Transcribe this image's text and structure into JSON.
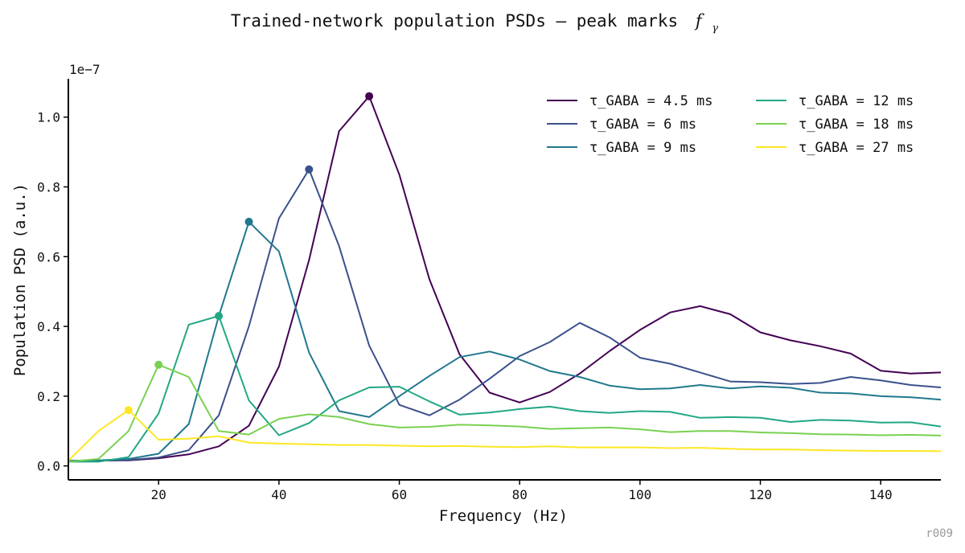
{
  "corner_label": "r009",
  "colors": {
    "axis": "#000000",
    "text": "#111111"
  },
  "chart_data": {
    "type": "line",
    "title": "Trained-network population PSDs — peak marks",
    "title_math": {
      "symbol": "f",
      "subscript": "γ"
    },
    "xlabel": "Frequency (Hz)",
    "ylabel": "Population PSD (a.u.)",
    "y_offset_text": "1e−7",
    "xlim": [
      5,
      150
    ],
    "ylim": [
      -0.04,
      1.11
    ],
    "xticks": [
      20,
      40,
      60,
      80,
      100,
      120,
      140
    ],
    "yticks": [
      0.0,
      0.2,
      0.4,
      0.6,
      0.8,
      1.0
    ],
    "ytick_labels": [
      "0.0",
      "0.2",
      "0.4",
      "0.6",
      "0.8",
      "1.0"
    ],
    "grid": false,
    "legend_placement": "top-right",
    "legend_columns": 2,
    "x": [
      5,
      10,
      15,
      20,
      25,
      30,
      35,
      40,
      45,
      50,
      55,
      60,
      65,
      70,
      75,
      80,
      85,
      90,
      95,
      100,
      105,
      110,
      115,
      120,
      125,
      130,
      135,
      140,
      145,
      150
    ],
    "series": [
      {
        "name": "τ_GABA = 4.5 ms",
        "color": "#440154",
        "peak_x": 55,
        "values": [
          0.015,
          0.015,
          0.016,
          0.022,
          0.033,
          0.056,
          0.115,
          0.285,
          0.59,
          0.96,
          1.06,
          0.835,
          0.535,
          0.32,
          0.21,
          0.182,
          0.212,
          0.265,
          0.33,
          0.39,
          0.44,
          0.458,
          0.435,
          0.383,
          0.36,
          0.343,
          0.322,
          0.273,
          0.265,
          0.268
        ]
      },
      {
        "name": "τ_GABA = 6 ms",
        "color": "#3b518b",
        "peak_x": 45,
        "values": [
          0.015,
          0.015,
          0.017,
          0.024,
          0.045,
          0.145,
          0.4,
          0.71,
          0.85,
          0.63,
          0.345,
          0.175,
          0.145,
          0.19,
          0.25,
          0.315,
          0.355,
          0.41,
          0.368,
          0.31,
          0.293,
          0.268,
          0.242,
          0.24,
          0.235,
          0.238,
          0.255,
          0.245,
          0.232,
          0.225
        ]
      },
      {
        "name": "τ_GABA = 9 ms",
        "color": "#21788e",
        "peak_x": 35,
        "values": [
          0.015,
          0.016,
          0.02,
          0.035,
          0.12,
          0.43,
          0.7,
          0.615,
          0.325,
          0.157,
          0.14,
          0.2,
          0.258,
          0.312,
          0.328,
          0.305,
          0.272,
          0.255,
          0.23,
          0.22,
          0.222,
          0.232,
          0.222,
          0.228,
          0.224,
          0.21,
          0.208,
          0.2,
          0.197,
          0.19
        ]
      },
      {
        "name": "τ_GABA = 12 ms",
        "color": "#22a784",
        "peak_x": 30,
        "values": [
          0.012,
          0.012,
          0.025,
          0.15,
          0.405,
          0.43,
          0.188,
          0.088,
          0.123,
          0.188,
          0.225,
          0.227,
          0.185,
          0.147,
          0.153,
          0.163,
          0.17,
          0.157,
          0.152,
          0.157,
          0.155,
          0.138,
          0.14,
          0.138,
          0.126,
          0.132,
          0.13,
          0.124,
          0.125,
          0.113
        ]
      },
      {
        "name": "τ_GABA = 18 ms",
        "color": "#79d151",
        "peak_x": 20,
        "values": [
          0.012,
          0.02,
          0.1,
          0.29,
          0.255,
          0.1,
          0.09,
          0.135,
          0.148,
          0.14,
          0.12,
          0.11,
          0.112,
          0.118,
          0.116,
          0.113,
          0.106,
          0.108,
          0.11,
          0.105,
          0.097,
          0.1,
          0.1,
          0.096,
          0.094,
          0.091,
          0.09,
          0.088,
          0.089,
          0.087
        ]
      },
      {
        "name": "τ_GABA = 27 ms",
        "color": "#fde724",
        "peak_x": 15,
        "values": [
          0.015,
          0.1,
          0.16,
          0.075,
          0.078,
          0.085,
          0.067,
          0.064,
          0.062,
          0.06,
          0.06,
          0.058,
          0.056,
          0.057,
          0.055,
          0.054,
          0.056,
          0.053,
          0.053,
          0.053,
          0.051,
          0.052,
          0.049,
          0.047,
          0.047,
          0.045,
          0.044,
          0.043,
          0.043,
          0.042
        ]
      }
    ]
  }
}
